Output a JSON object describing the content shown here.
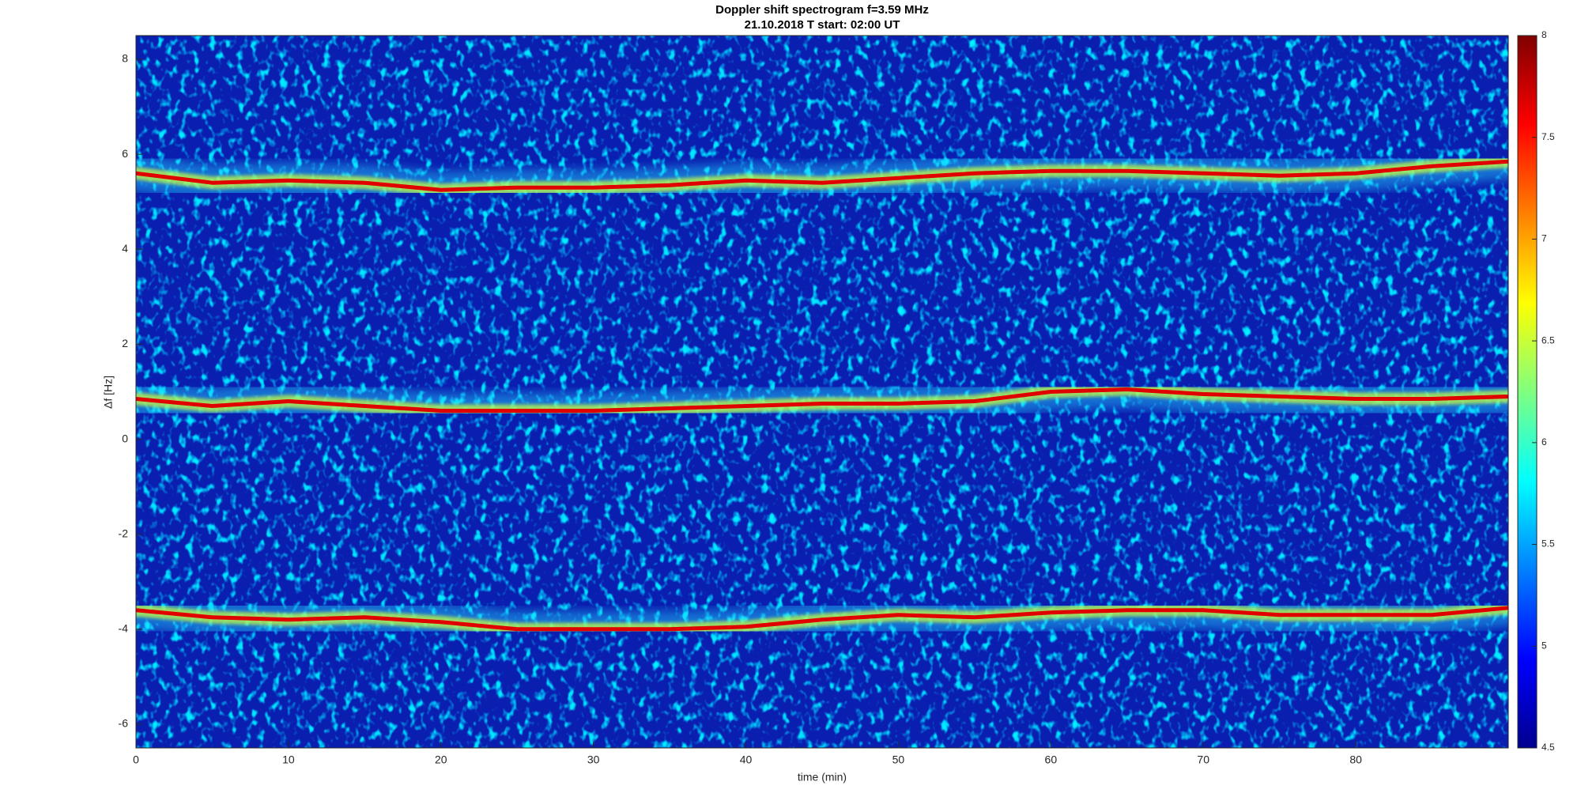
{
  "chart_data": {
    "type": "spectrogram",
    "title": "Doppler shift spectrogram f=3.59 MHz",
    "subtitle": "21.10.2018   T start: 02:00 UT",
    "x_label": "time (min)",
    "y_label": "Δf [Hz]",
    "x": [
      0,
      5,
      10,
      15,
      20,
      25,
      30,
      35,
      40,
      45,
      50,
      55,
      60,
      65,
      70,
      75,
      80,
      85,
      90
    ],
    "series": [
      {
        "color": "#e00000",
        "values": [
          5.6,
          5.4,
          5.45,
          5.4,
          5.25,
          5.3,
          5.3,
          5.35,
          5.45,
          5.4,
          5.5,
          5.6,
          5.65,
          5.65,
          5.6,
          5.55,
          5.6,
          5.75,
          5.85
        ]
      },
      {
        "color": "#e00000",
        "values": [
          0.85,
          0.7,
          0.8,
          0.7,
          0.6,
          0.6,
          0.6,
          0.65,
          0.7,
          0.75,
          0.75,
          0.8,
          1.0,
          1.05,
          0.95,
          0.9,
          0.85,
          0.85,
          0.9
        ]
      },
      {
        "color": "#e00000",
        "values": [
          -3.6,
          -3.75,
          -3.8,
          -3.75,
          -3.85,
          -4.0,
          -4.0,
          -4.0,
          -3.95,
          -3.8,
          -3.7,
          -3.75,
          -3.65,
          -3.6,
          -3.6,
          -3.7,
          -3.7,
          -3.7,
          -3.55
        ]
      }
    ],
    "xlim": [
      0,
      90
    ],
    "xticks": [
      0,
      10,
      20,
      30,
      40,
      50,
      60,
      70,
      80
    ],
    "ylim": [
      -6.5,
      8.5
    ],
    "yticks": [
      -6,
      -4,
      -2,
      0,
      2,
      4,
      6,
      8
    ],
    "colorbar": {
      "lim": [
        4.5,
        8
      ],
      "ticks": [
        4.5,
        5,
        5.5,
        6,
        6.5,
        7,
        7.5,
        8
      ]
    }
  }
}
